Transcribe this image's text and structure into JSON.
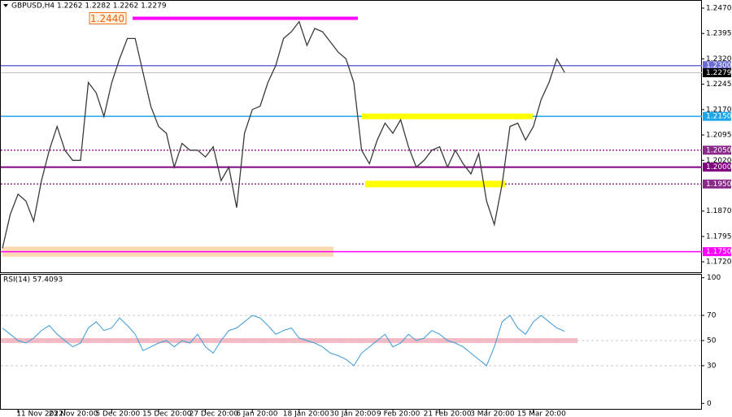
{
  "chart_data": [
    {
      "type": "price",
      "title": "GBPUSD,H4 1.2262 1.2282 1.2262 1.2279",
      "categories": [
        null,
        null,
        "11 Nov 2022",
        null,
        null,
        null,
        null,
        null,
        "23 Nov 20:00",
        null,
        null,
        null,
        null,
        null,
        "5 Dec 20:00",
        null,
        null,
        null,
        null,
        null,
        "15 Dec 20:00",
        null,
        null,
        null,
        null,
        null,
        "27 Dec 20:00",
        null,
        null,
        null,
        null,
        null,
        "6 Jan 20:00",
        null,
        null,
        null,
        null,
        null,
        "18 Jan 20:00",
        null,
        null,
        null,
        null,
        null,
        "30 Jan 20:00",
        null,
        null,
        null,
        null,
        null,
        "9 Feb 20:00",
        null,
        null,
        null,
        null,
        null,
        "21 Feb 20:00",
        null,
        null,
        null,
        null,
        null,
        "3 Mar 20:00",
        null,
        null,
        null,
        null,
        null,
        "15 Mar 20:00",
        null,
        null,
        null,
        null
      ],
      "series": [
        {
          "color": "#3a3a3a",
          "values": [
            1.176,
            1.186,
            1.192,
            1.19,
            1.184,
            1.196,
            1.205,
            1.212,
            1.205,
            1.202,
            1.202,
            1.225,
            1.222,
            1.215,
            1.225,
            1.232,
            1.238,
            1.238,
            1.228,
            1.218,
            1.212,
            1.21,
            1.2,
            1.207,
            1.205,
            1.205,
            1.203,
            1.206,
            1.196,
            1.2,
            1.188,
            1.21,
            1.217,
            1.218,
            1.225,
            1.23,
            1.238,
            1.24,
            1.243,
            1.236,
            1.241,
            1.24,
            1.237,
            1.234,
            1.232,
            1.225,
            1.205,
            1.201,
            1.208,
            1.213,
            1.21,
            1.214,
            1.206,
            1.2,
            1.202,
            1.205,
            1.206,
            1.2,
            1.205,
            1.201,
            1.198,
            1.204,
            1.19,
            1.183,
            1.195,
            1.212,
            1.213,
            1.208,
            1.212,
            1.22,
            1.225,
            1.232,
            1.228
          ]
        }
      ],
      "ylim": [
        1.1689,
        1.2494
      ],
      "yticks": [
        {
          "value": 1.247,
          "label": "1.2470"
        },
        {
          "value": 1.2395,
          "label": "1.2395"
        },
        {
          "value": 1.232,
          "label": "1.2320"
        },
        {
          "value": 1.2245,
          "label": "1.2245"
        },
        {
          "value": 1.217,
          "label": "1.2170"
        },
        {
          "value": 1.2095,
          "label": "1.2095"
        },
        {
          "value": 1.202,
          "label": "1.2020"
        },
        {
          "value": 1.187,
          "label": "1.1870"
        },
        {
          "value": 1.1795,
          "label": "1.1795"
        },
        {
          "value": 1.172,
          "label": "1.1720"
        }
      ],
      "levels": [
        {
          "value": 1.23,
          "label": "1.2300",
          "color": "#6b6bd6"
        },
        {
          "value": 1.2279,
          "label": "1.2279",
          "color": "#000000"
        },
        {
          "value": 1.215,
          "label": "1.2150",
          "color": "#1ea7e8"
        },
        {
          "value": 1.205,
          "label": "1.2050",
          "color": "#8a2a8a"
        },
        {
          "value": 1.2,
          "label": "1.2000",
          "color": "#800080"
        },
        {
          "value": 1.195,
          "label": "1.1950",
          "color": "#8a2a8a"
        },
        {
          "value": 1.175,
          "label": "1.1750",
          "color": "#ff00ff"
        }
      ],
      "annotations": [
        {
          "value": 1.244,
          "label": "1.2440",
          "color": "#ff00ff"
        }
      ]
    },
    {
      "type": "rsi",
      "title": "RSI(14) 57.4093",
      "series": [
        {
          "color": "#3d9bd6",
          "values": [
            60,
            55,
            50,
            48,
            52,
            58,
            62,
            55,
            50,
            45,
            48,
            60,
            65,
            58,
            60,
            68,
            62,
            55,
            42,
            45,
            48,
            50,
            45,
            50,
            48,
            55,
            45,
            40,
            50,
            58,
            60,
            65,
            70,
            68,
            62,
            55,
            58,
            60,
            52,
            50,
            48,
            45,
            40,
            38,
            35,
            30,
            40,
            45,
            50,
            55,
            45,
            48,
            55,
            50,
            52,
            58,
            55,
            50,
            48,
            45,
            40,
            35,
            30,
            45,
            65,
            70,
            60,
            55,
            65,
            70,
            65,
            60,
            57.4093
          ]
        }
      ],
      "ylim": [
        -5,
        103
      ],
      "yticks": [
        100,
        70,
        50,
        30,
        0
      ]
    }
  ]
}
